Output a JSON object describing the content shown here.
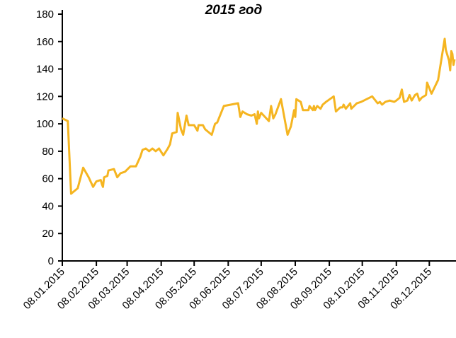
{
  "chart_data": {
    "type": "line",
    "title": "2015 год",
    "x": [
      "2015-01-08",
      "2015-01-13",
      "2015-01-16",
      "2015-01-22",
      "2015-01-27",
      "2015-02-01",
      "2015-02-05",
      "2015-02-08",
      "2015-02-12",
      "2015-02-13",
      "2015-02-14",
      "2015-02-15",
      "2015-02-18",
      "2015-02-19",
      "2015-02-24",
      "2015-02-27",
      "2015-03-02",
      "2015-03-06",
      "2015-03-11",
      "2015-03-16",
      "2015-03-20",
      "2015-03-22",
      "2015-03-25",
      "2015-03-28",
      "2015-03-31",
      "2015-04-03",
      "2015-04-06",
      "2015-04-10",
      "2015-04-14",
      "2015-04-16",
      "2015-04-18",
      "2015-04-22",
      "2015-04-23",
      "2015-04-26",
      "2015-04-28",
      "2015-05-01",
      "2015-05-03",
      "2015-05-08",
      "2015-05-11",
      "2015-05-12",
      "2015-05-16",
      "2015-05-18",
      "2015-05-24",
      "2015-05-27",
      "2015-05-29",
      "2015-06-04",
      "2015-06-17",
      "2015-06-19",
      "2015-06-21",
      "2015-06-25",
      "2015-06-29",
      "2015-07-02",
      "2015-07-04",
      "2015-07-05",
      "2015-07-06",
      "2015-07-08",
      "2015-07-15",
      "2015-07-17",
      "2015-07-19",
      "2015-07-21",
      "2015-07-26",
      "2015-08-01",
      "2015-08-04",
      "2015-08-07",
      "2015-08-08",
      "2015-08-09",
      "2015-08-13",
      "2015-08-15",
      "2015-08-20",
      "2015-08-21",
      "2015-08-24",
      "2015-08-25",
      "2015-08-26",
      "2015-08-28",
      "2015-08-31",
      "2015-09-02",
      "2015-09-05",
      "2015-09-12",
      "2015-09-14",
      "2015-09-18",
      "2015-09-20",
      "2015-09-21",
      "2015-09-23",
      "2015-09-27",
      "2015-09-28",
      "2015-10-03",
      "2015-10-07",
      "2015-10-17",
      "2015-10-22",
      "2015-10-24",
      "2015-10-26",
      "2015-10-29",
      "2015-11-02",
      "2015-11-06",
      "2015-11-08",
      "2015-11-11",
      "2015-11-13",
      "2015-11-15",
      "2015-11-18",
      "2015-11-20",
      "2015-11-22",
      "2015-11-25",
      "2015-11-27",
      "2015-11-29",
      "2015-12-01",
      "2015-12-05",
      "2015-12-06",
      "2015-12-10",
      "2015-12-16",
      "2015-12-22",
      "2015-12-23",
      "2015-12-26",
      "2015-12-27",
      "2015-12-28",
      "2015-12-29",
      "2015-12-30",
      "2015-12-31"
    ],
    "series": [
      {
        "color": "#f5b521",
        "values": [
          104,
          102,
          49,
          53,
          68,
          61,
          54,
          58,
          59,
          56,
          54,
          61,
          62,
          66,
          67,
          61,
          64,
          65,
          69,
          69,
          76,
          81,
          82,
          80,
          82,
          80,
          82,
          77,
          82,
          85,
          93,
          94,
          108,
          96,
          92,
          106,
          99,
          99,
          95,
          99,
          99,
          96,
          92,
          100,
          101,
          113,
          115,
          105,
          109,
          107,
          106,
          107,
          100,
          109,
          104,
          108,
          102,
          113,
          104,
          107,
          118,
          92,
          98,
          110,
          105,
          118,
          116,
          110,
          110,
          113,
          110,
          113,
          110,
          113,
          111,
          114,
          116,
          120,
          109,
          112,
          112,
          114,
          111,
          115,
          111,
          115,
          116,
          120,
          115,
          116,
          114,
          116,
          117,
          116,
          117,
          119,
          125,
          116,
          117,
          121,
          117,
          121,
          122,
          117,
          119,
          121,
          130,
          122,
          132,
          162,
          154,
          146,
          139,
          153,
          151,
          143,
          147
        ]
      }
    ],
    "xlim": [
      "2015-01-08",
      "2015-12-31"
    ],
    "xticks": [
      {
        "value": "2015-01-08",
        "label": "08.01.2015"
      },
      {
        "value": "2015-02-08",
        "label": "08.02.2015"
      },
      {
        "value": "2015-03-08",
        "label": "08.03.2015"
      },
      {
        "value": "2015-04-08",
        "label": "08.04.2015"
      },
      {
        "value": "2015-05-08",
        "label": "08.05.2015"
      },
      {
        "value": "2015-06-08",
        "label": "08.06.2015"
      },
      {
        "value": "2015-07-08",
        "label": "08.07.2015"
      },
      {
        "value": "2015-08-08",
        "label": "08.08.2015"
      },
      {
        "value": "2015-09-08",
        "label": "08.09.2015"
      },
      {
        "value": "2015-10-08",
        "label": "08.10.2015"
      },
      {
        "value": "2015-11-08",
        "label": "08.11.2015"
      },
      {
        "value": "2015-12-08",
        "label": "08.12.2015"
      }
    ],
    "ylim": [
      0,
      180
    ],
    "yticks": [
      0,
      20,
      40,
      60,
      80,
      100,
      120,
      140,
      160,
      180
    ]
  }
}
